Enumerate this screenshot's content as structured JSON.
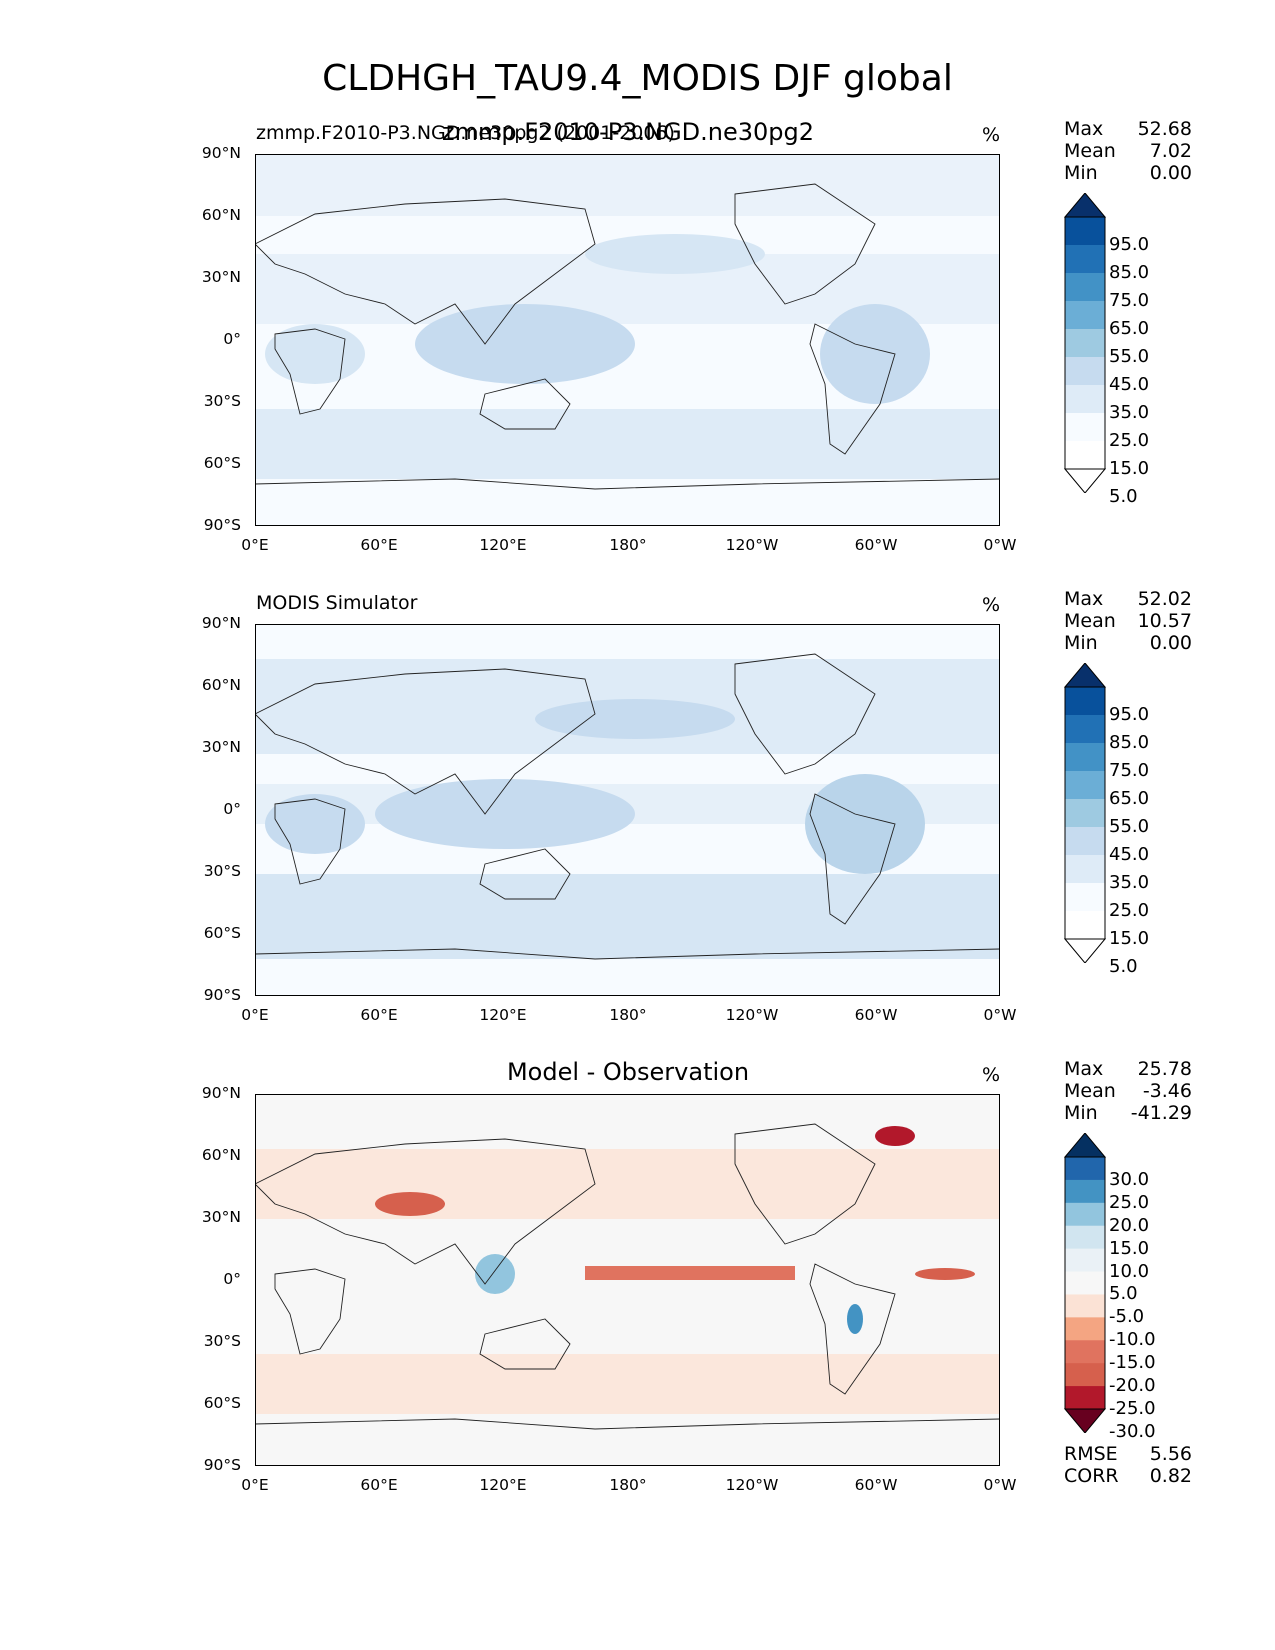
{
  "figure": {
    "title": "CLDHGH_TAU9.4_MODIS DJF global"
  },
  "chart_data": [
    {
      "type": "heatmap",
      "left_title": "zmmp.F2010-P3.NGD.ne30pg2 (2001-2006)",
      "center_title": "zmmp.F2010-P3.NGD.ne30pg2",
      "units": "%",
      "stats": {
        "max": "52.68",
        "mean": "7.02",
        "min": "0.00"
      },
      "colorbar": {
        "ticks": [
          "95.0",
          "85.0",
          "75.0",
          "65.0",
          "55.0",
          "45.0",
          "35.0",
          "25.0",
          "15.0",
          "5.0"
        ],
        "colors": [
          "#08306b",
          "#08519c",
          "#2171b5",
          "#4292c6",
          "#6baed6",
          "#9ecae1",
          "#c6dbef",
          "#deebf7",
          "#f7fbff",
          "#ffffff",
          "#ffffff"
        ],
        "extend": "both"
      },
      "x_ticks": [
        "0°E",
        "60°E",
        "120°E",
        "180°",
        "120°W",
        "60°W",
        "0°W"
      ],
      "y_ticks": [
        "90°N",
        "60°N",
        "30°N",
        "0°",
        "30°S",
        "60°S",
        "90°S"
      ],
      "xlim": [
        0,
        360
      ],
      "ylim": [
        -90,
        90
      ]
    },
    {
      "type": "heatmap",
      "left_title": "MODIS Simulator",
      "center_title": "",
      "units": "%",
      "stats": {
        "max": "52.02",
        "mean": "10.57",
        "min": "0.00"
      },
      "colorbar": {
        "ticks": [
          "95.0",
          "85.0",
          "75.0",
          "65.0",
          "55.0",
          "45.0",
          "35.0",
          "25.0",
          "15.0",
          "5.0"
        ],
        "colors": [
          "#08306b",
          "#08519c",
          "#2171b5",
          "#4292c6",
          "#6baed6",
          "#9ecae1",
          "#c6dbef",
          "#deebf7",
          "#f7fbff",
          "#ffffff",
          "#ffffff"
        ],
        "extend": "both"
      },
      "x_ticks": [
        "0°E",
        "60°E",
        "120°E",
        "180°",
        "120°W",
        "60°W",
        "0°W"
      ],
      "y_ticks": [
        "90°N",
        "60°N",
        "30°N",
        "0°",
        "30°S",
        "60°S",
        "90°S"
      ],
      "xlim": [
        0,
        360
      ],
      "ylim": [
        -90,
        90
      ]
    },
    {
      "type": "heatmap",
      "left_title": "",
      "center_title": "Model - Observation",
      "units": "%",
      "stats": {
        "max": "25.78",
        "mean": "-3.46",
        "min": "-41.29"
      },
      "colorbar": {
        "ticks": [
          "30.0",
          "25.0",
          "20.0",
          "15.0",
          "10.0",
          "5.0",
          "-5.0",
          "-10.0",
          "-15.0",
          "-20.0",
          "-25.0",
          "-30.0"
        ],
        "colors": [
          "#053061",
          "#2166ac",
          "#4393c3",
          "#92c5de",
          "#d1e5f0",
          "#eaf1f6",
          "#f7f7f7",
          "#fbe2d5",
          "#f4a582",
          "#e0735f",
          "#d6604d",
          "#b2182b",
          "#67001f"
        ],
        "extend": "both"
      },
      "metrics": {
        "rmse_label": "RMSE",
        "rmse": "5.56",
        "corr_label": "CORR",
        "corr": "0.82"
      },
      "x_ticks": [
        "0°E",
        "60°E",
        "120°E",
        "180°",
        "120°W",
        "60°W",
        "0°W"
      ],
      "y_ticks": [
        "90°N",
        "60°N",
        "30°N",
        "0°",
        "30°S",
        "60°S",
        "90°S"
      ],
      "xlim": [
        0,
        360
      ],
      "ylim": [
        -90,
        90
      ]
    }
  ]
}
